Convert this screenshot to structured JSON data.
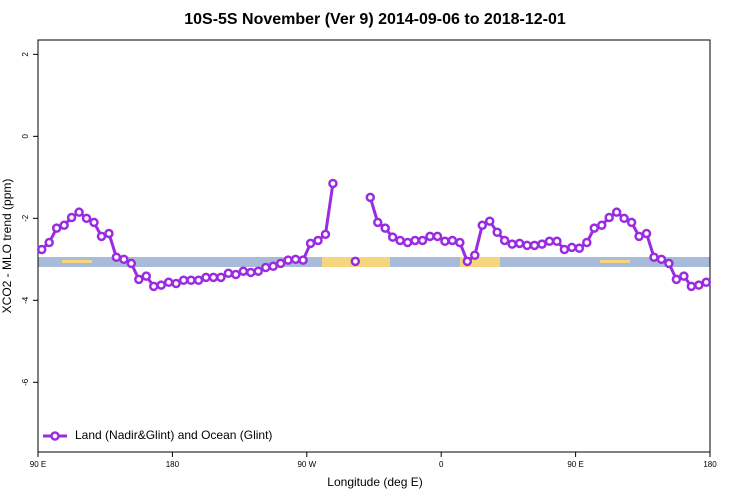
{
  "chart_data": {
    "type": "line",
    "title": "10S-5S November (Ver 9)   2014-09-06 to 2018-12-01",
    "x_label": "Longitude (deg E)",
    "y_label": "XCO2 - MLO trend (ppm)",
    "x": [
      92.5,
      97.5,
      102.5,
      107.5,
      112.5,
      117.5,
      122.5,
      127.5,
      132.5,
      137.5,
      142.5,
      147.5,
      152.5,
      157.5,
      162.5,
      167.5,
      172.5,
      177.5,
      182.5,
      187.5,
      192.5,
      197.5,
      202.5,
      207.5,
      212.5,
      217.5,
      222.5,
      227.5,
      232.5,
      237.5,
      242.5,
      247.5,
      252.5,
      257.5,
      262.5,
      267.5,
      272.5,
      277.5,
      282.5,
      287.5,
      292.5,
      297.5,
      302.5,
      307.5,
      312.5,
      317.5,
      322.5,
      327.5,
      332.5,
      337.5,
      342.5,
      347.5,
      352.5,
      357.5,
      362.5,
      367.5,
      372.5,
      377.5,
      382.5,
      387.5,
      392.5,
      397.5,
      402.5,
      407.5,
      412.5,
      417.5,
      422.5,
      427.5,
      432.5,
      437.5,
      442.5,
      447.5,
      452.5,
      457.5,
      462.5,
      467.5,
      472.5,
      477.5,
      482.5,
      487.5,
      492.5,
      497.5,
      502.5,
      507.5,
      512.5,
      517.5,
      522.5,
      527.5,
      532.5,
      537.5
    ],
    "series": [
      {
        "name": "Land (Nadir&Glint) and Ocean (Glint)",
        "color": "#9b2be0",
        "values": [
          -2.76,
          -2.59,
          -2.24,
          -2.17,
          -1.98,
          -1.85,
          -2.0,
          -2.1,
          -2.44,
          -2.37,
          -2.95,
          -3.0,
          -3.1,
          -3.49,
          -3.41,
          -3.66,
          -3.63,
          -3.56,
          -3.59,
          -3.51,
          -3.51,
          -3.51,
          -3.44,
          -3.44,
          -3.44,
          -3.34,
          -3.37,
          -3.29,
          -3.32,
          -3.29,
          -3.2,
          -3.17,
          -3.1,
          -3.02,
          -3.0,
          -3.02,
          -2.61,
          -2.54,
          -2.39,
          -1.15,
          null,
          null,
          -3.05,
          null,
          -1.49,
          -2.1,
          -2.24,
          -2.46,
          -2.54,
          -2.59,
          -2.54,
          -2.54,
          -2.44,
          -2.44,
          -2.56,
          -2.54,
          -2.59,
          -3.05,
          -2.9,
          -2.17,
          -2.07,
          -2.34,
          -2.54,
          -2.63,
          -2.61,
          -2.66,
          -2.66,
          -2.63,
          -2.56,
          -2.56,
          -2.76,
          -2.71,
          -2.73,
          -2.59,
          -2.24,
          -2.17,
          -1.98,
          -1.85,
          -2.0,
          -2.1,
          -2.44,
          -2.37,
          -2.95,
          -3.0,
          -3.1,
          -3.49,
          -3.41,
          -3.66,
          -3.63,
          -3.56
        ]
      }
    ],
    "xlim": [
      90,
      540
    ],
    "xticks": [
      {
        "value": 90,
        "label": "90 E"
      },
      {
        "value": 180,
        "label": "180"
      },
      {
        "value": 270,
        "label": "90 W"
      },
      {
        "value": 360,
        "label": "0"
      },
      {
        "value": 450,
        "label": "90 E"
      },
      {
        "value": 540,
        "label": "180"
      }
    ],
    "ylim": [
      -7.7,
      2.35
    ],
    "yticks": [
      -6,
      -4,
      -2,
      0,
      2
    ],
    "legend": "bottom-left"
  }
}
